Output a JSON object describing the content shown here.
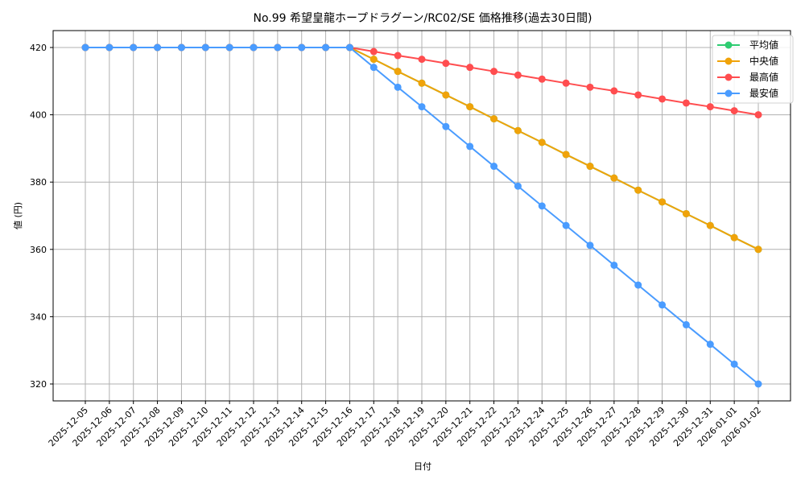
{
  "chart_data": {
    "type": "line",
    "title": "No.99 希望皇龍ホープドラグーン/RC02/SE 価格推移(過去30日間)",
    "xlabel": "日付",
    "ylabel": "値 (円)",
    "ylim": [
      315,
      425
    ],
    "yticks": [
      320,
      340,
      360,
      380,
      400,
      420
    ],
    "grid": true,
    "legend_position": "upper right",
    "x": [
      "2025-12-05",
      "2025-12-06",
      "2025-12-07",
      "2025-12-08",
      "2025-12-09",
      "2025-12-10",
      "2025-12-11",
      "2025-12-12",
      "2025-12-13",
      "2025-12-14",
      "2025-12-15",
      "2025-12-16",
      "2025-12-17",
      "2025-12-18",
      "2025-12-19",
      "2025-12-20",
      "2025-12-21",
      "2025-12-22",
      "2025-12-23",
      "2025-12-24",
      "2025-12-25",
      "2025-12-26",
      "2025-12-27",
      "2025-12-28",
      "2025-12-29",
      "2025-12-30",
      "2025-12-31",
      "2026-01-01",
      "2026-01-02"
    ],
    "series": [
      {
        "name": "平均値",
        "color": "#2ecc71",
        "values": [
          420,
          420,
          420,
          420,
          420,
          420,
          420,
          420,
          420,
          420,
          420,
          420,
          416.5,
          412.9,
          409.4,
          405.9,
          402.4,
          398.8,
          395.3,
          391.8,
          388.2,
          384.7,
          381.2,
          377.6,
          374.1,
          370.6,
          367.1,
          363.5,
          360
        ]
      },
      {
        "name": "中央値",
        "color": "#f0a30a",
        "values": [
          420,
          420,
          420,
          420,
          420,
          420,
          420,
          420,
          420,
          420,
          420,
          420,
          416.5,
          412.9,
          409.4,
          405.9,
          402.4,
          398.8,
          395.3,
          391.8,
          388.2,
          384.7,
          381.2,
          377.6,
          374.1,
          370.6,
          367.1,
          363.5,
          360
        ]
      },
      {
        "name": "最高値",
        "color": "#ff4d4f",
        "values": [
          420,
          420,
          420,
          420,
          420,
          420,
          420,
          420,
          420,
          420,
          420,
          420,
          418.8,
          417.6,
          416.5,
          415.3,
          414.1,
          412.9,
          411.8,
          410.6,
          409.4,
          408.2,
          407.1,
          405.9,
          404.7,
          403.5,
          402.4,
          401.2,
          400
        ]
      },
      {
        "name": "最安値",
        "color": "#4a9cff",
        "values": [
          420,
          420,
          420,
          420,
          420,
          420,
          420,
          420,
          420,
          420,
          420,
          420,
          414.1,
          408.2,
          402.4,
          396.5,
          390.6,
          384.7,
          378.8,
          372.9,
          367.1,
          361.2,
          355.3,
          349.4,
          343.5,
          337.6,
          331.8,
          325.9,
          320
        ]
      }
    ]
  }
}
